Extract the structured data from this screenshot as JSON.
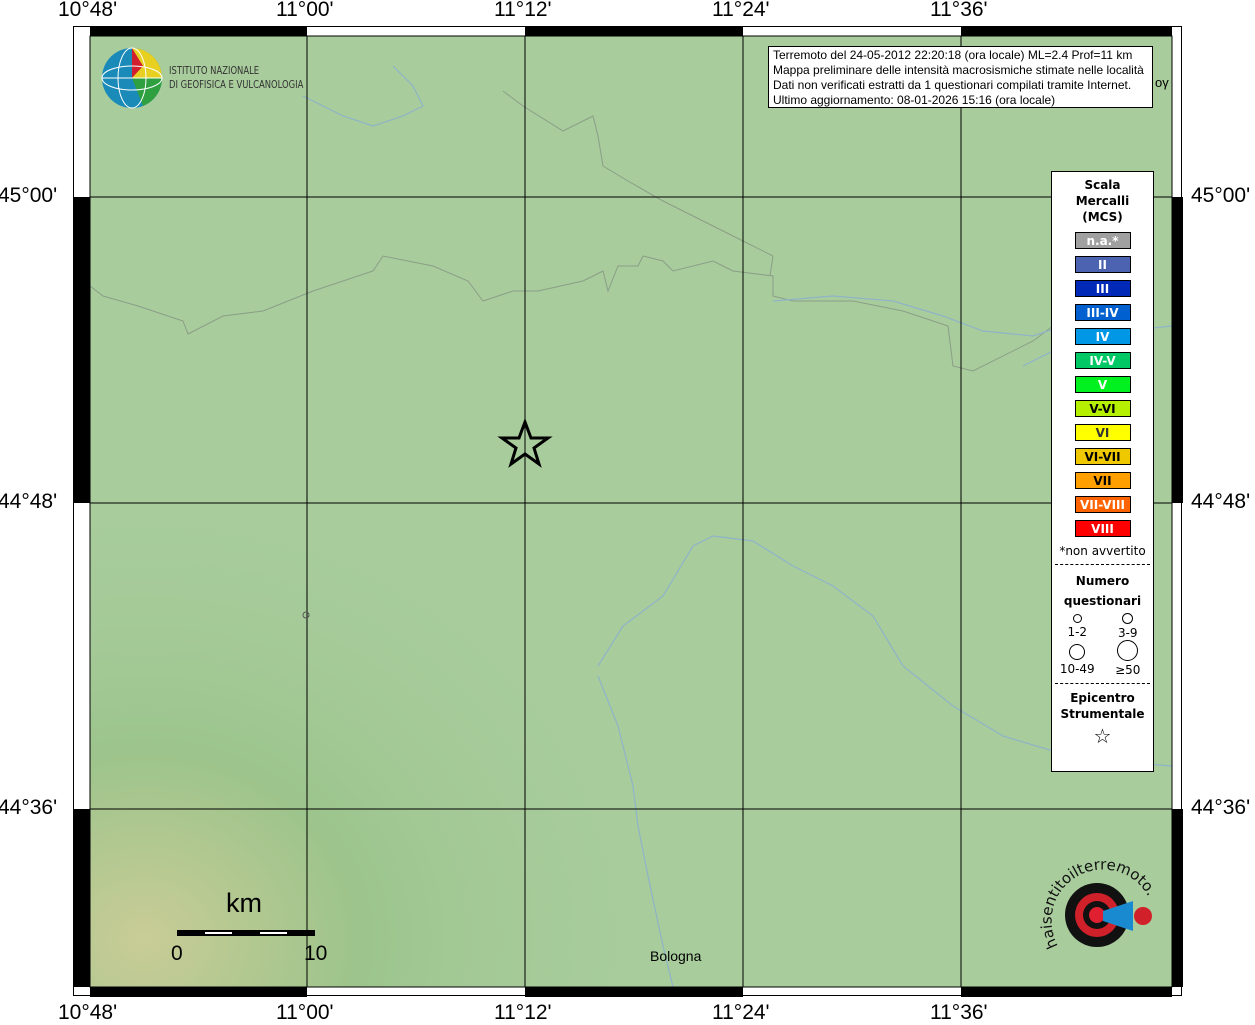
{
  "axes": {
    "lon_ticks": [
      "10°48'",
      "11°00'",
      "11°12'",
      "11°24'",
      "11°36'"
    ],
    "lat_ticks": [
      "45°00'",
      "44°48'",
      "44°36'"
    ]
  },
  "logo_ingv": {
    "line1": "ISTITUTO NAZIONALE",
    "line2": "DI GEOFISICA E VULCANOLOGIA"
  },
  "info": {
    "lines": [
      "Terremoto del 24-05-2012 22:20:18 (ora locale) ML=2.4 Prof=11 km",
      "Mappa preliminare delle intensità macrosismiche stimate nelle località",
      "Dati non verificati estratti da 1 questionari compilati tramite Internet.",
      "Ultimo aggiornamento: 08-01-2026 15:16 (ora locale)"
    ]
  },
  "legend": {
    "title": [
      "Scala",
      "Mercalli",
      "(MCS)"
    ],
    "scale": [
      {
        "label": "n.a.*",
        "color": "#a0a0a0"
      },
      {
        "label": "II",
        "color": "#4b63b0"
      },
      {
        "label": "III",
        "color": "#0029b8"
      },
      {
        "label": "III-IV",
        "color": "#0060d0"
      },
      {
        "label": "IV",
        "color": "#0097e6"
      },
      {
        "label": "IV-V",
        "color": "#00c864"
      },
      {
        "label": "V",
        "color": "#00f020"
      },
      {
        "label": "V-VI",
        "color": "#b4f000"
      },
      {
        "label": "VI",
        "color": "#ffff00"
      },
      {
        "label": "VI-VII",
        "color": "#f0c800"
      },
      {
        "label": "VII",
        "color": "#ffa000"
      },
      {
        "label": "VII-VIII",
        "color": "#ff6400"
      },
      {
        "label": "VIII",
        "color": "#ff0000"
      }
    ],
    "note": "*non avvertito",
    "count_title": [
      "Numero",
      "questionari"
    ],
    "counts": [
      "1-2",
      "3-9",
      "10-49",
      "≥50"
    ],
    "epi_title": [
      "Epicentro",
      "Strumentale"
    ]
  },
  "scalebar": {
    "unit": "km",
    "min": "0",
    "max": "10"
  },
  "places": {
    "bologna": "Bologna",
    "edge": "oγ"
  },
  "logo_hsit": "www.haisentitoilterremoto.it"
}
